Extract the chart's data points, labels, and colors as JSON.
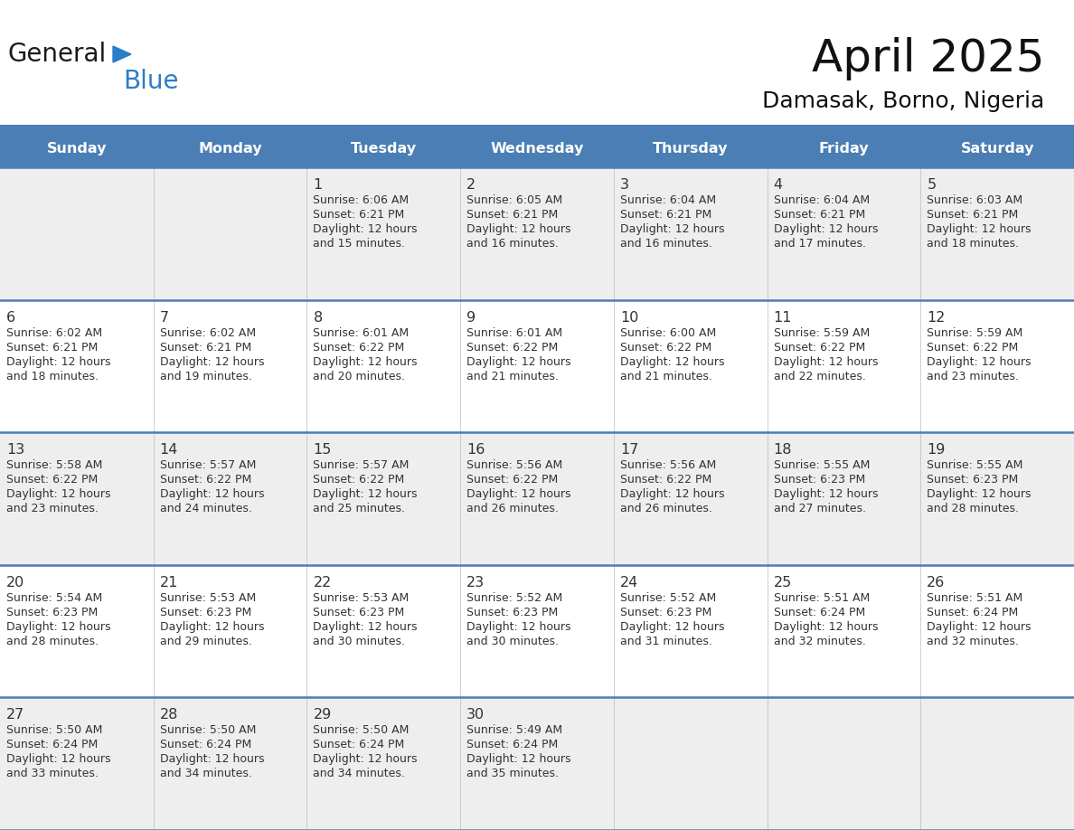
{
  "title": "April 2025",
  "subtitle": "Damasak, Borno, Nigeria",
  "header_color": "#4a7eb5",
  "header_text_color": "#ffffff",
  "border_color": "#4a7eb5",
  "text_color": "#333333",
  "days_of_week": [
    "Sunday",
    "Monday",
    "Tuesday",
    "Wednesday",
    "Thursday",
    "Friday",
    "Saturday"
  ],
  "row_bg_colors": [
    "#eeeeee",
    "#ffffff"
  ],
  "calendar_data": [
    [
      {
        "day": "",
        "sunrise": "",
        "sunset": "",
        "dl1": "",
        "dl2": ""
      },
      {
        "day": "",
        "sunrise": "",
        "sunset": "",
        "dl1": "",
        "dl2": ""
      },
      {
        "day": "1",
        "sunrise": "Sunrise: 6:06 AM",
        "sunset": "Sunset: 6:21 PM",
        "dl1": "Daylight: 12 hours",
        "dl2": "and 15 minutes."
      },
      {
        "day": "2",
        "sunrise": "Sunrise: 6:05 AM",
        "sunset": "Sunset: 6:21 PM",
        "dl1": "Daylight: 12 hours",
        "dl2": "and 16 minutes."
      },
      {
        "day": "3",
        "sunrise": "Sunrise: 6:04 AM",
        "sunset": "Sunset: 6:21 PM",
        "dl1": "Daylight: 12 hours",
        "dl2": "and 16 minutes."
      },
      {
        "day": "4",
        "sunrise": "Sunrise: 6:04 AM",
        "sunset": "Sunset: 6:21 PM",
        "dl1": "Daylight: 12 hours",
        "dl2": "and 17 minutes."
      },
      {
        "day": "5",
        "sunrise": "Sunrise: 6:03 AM",
        "sunset": "Sunset: 6:21 PM",
        "dl1": "Daylight: 12 hours",
        "dl2": "and 18 minutes."
      }
    ],
    [
      {
        "day": "6",
        "sunrise": "Sunrise: 6:02 AM",
        "sunset": "Sunset: 6:21 PM",
        "dl1": "Daylight: 12 hours",
        "dl2": "and 18 minutes."
      },
      {
        "day": "7",
        "sunrise": "Sunrise: 6:02 AM",
        "sunset": "Sunset: 6:21 PM",
        "dl1": "Daylight: 12 hours",
        "dl2": "and 19 minutes."
      },
      {
        "day": "8",
        "sunrise": "Sunrise: 6:01 AM",
        "sunset": "Sunset: 6:22 PM",
        "dl1": "Daylight: 12 hours",
        "dl2": "and 20 minutes."
      },
      {
        "day": "9",
        "sunrise": "Sunrise: 6:01 AM",
        "sunset": "Sunset: 6:22 PM",
        "dl1": "Daylight: 12 hours",
        "dl2": "and 21 minutes."
      },
      {
        "day": "10",
        "sunrise": "Sunrise: 6:00 AM",
        "sunset": "Sunset: 6:22 PM",
        "dl1": "Daylight: 12 hours",
        "dl2": "and 21 minutes."
      },
      {
        "day": "11",
        "sunrise": "Sunrise: 5:59 AM",
        "sunset": "Sunset: 6:22 PM",
        "dl1": "Daylight: 12 hours",
        "dl2": "and 22 minutes."
      },
      {
        "day": "12",
        "sunrise": "Sunrise: 5:59 AM",
        "sunset": "Sunset: 6:22 PM",
        "dl1": "Daylight: 12 hours",
        "dl2": "and 23 minutes."
      }
    ],
    [
      {
        "day": "13",
        "sunrise": "Sunrise: 5:58 AM",
        "sunset": "Sunset: 6:22 PM",
        "dl1": "Daylight: 12 hours",
        "dl2": "and 23 minutes."
      },
      {
        "day": "14",
        "sunrise": "Sunrise: 5:57 AM",
        "sunset": "Sunset: 6:22 PM",
        "dl1": "Daylight: 12 hours",
        "dl2": "and 24 minutes."
      },
      {
        "day": "15",
        "sunrise": "Sunrise: 5:57 AM",
        "sunset": "Sunset: 6:22 PM",
        "dl1": "Daylight: 12 hours",
        "dl2": "and 25 minutes."
      },
      {
        "day": "16",
        "sunrise": "Sunrise: 5:56 AM",
        "sunset": "Sunset: 6:22 PM",
        "dl1": "Daylight: 12 hours",
        "dl2": "and 26 minutes."
      },
      {
        "day": "17",
        "sunrise": "Sunrise: 5:56 AM",
        "sunset": "Sunset: 6:22 PM",
        "dl1": "Daylight: 12 hours",
        "dl2": "and 26 minutes."
      },
      {
        "day": "18",
        "sunrise": "Sunrise: 5:55 AM",
        "sunset": "Sunset: 6:23 PM",
        "dl1": "Daylight: 12 hours",
        "dl2": "and 27 minutes."
      },
      {
        "day": "19",
        "sunrise": "Sunrise: 5:55 AM",
        "sunset": "Sunset: 6:23 PM",
        "dl1": "Daylight: 12 hours",
        "dl2": "and 28 minutes."
      }
    ],
    [
      {
        "day": "20",
        "sunrise": "Sunrise: 5:54 AM",
        "sunset": "Sunset: 6:23 PM",
        "dl1": "Daylight: 12 hours",
        "dl2": "and 28 minutes."
      },
      {
        "day": "21",
        "sunrise": "Sunrise: 5:53 AM",
        "sunset": "Sunset: 6:23 PM",
        "dl1": "Daylight: 12 hours",
        "dl2": "and 29 minutes."
      },
      {
        "day": "22",
        "sunrise": "Sunrise: 5:53 AM",
        "sunset": "Sunset: 6:23 PM",
        "dl1": "Daylight: 12 hours",
        "dl2": "and 30 minutes."
      },
      {
        "day": "23",
        "sunrise": "Sunrise: 5:52 AM",
        "sunset": "Sunset: 6:23 PM",
        "dl1": "Daylight: 12 hours",
        "dl2": "and 30 minutes."
      },
      {
        "day": "24",
        "sunrise": "Sunrise: 5:52 AM",
        "sunset": "Sunset: 6:23 PM",
        "dl1": "Daylight: 12 hours",
        "dl2": "and 31 minutes."
      },
      {
        "day": "25",
        "sunrise": "Sunrise: 5:51 AM",
        "sunset": "Sunset: 6:24 PM",
        "dl1": "Daylight: 12 hours",
        "dl2": "and 32 minutes."
      },
      {
        "day": "26",
        "sunrise": "Sunrise: 5:51 AM",
        "sunset": "Sunset: 6:24 PM",
        "dl1": "Daylight: 12 hours",
        "dl2": "and 32 minutes."
      }
    ],
    [
      {
        "day": "27",
        "sunrise": "Sunrise: 5:50 AM",
        "sunset": "Sunset: 6:24 PM",
        "dl1": "Daylight: 12 hours",
        "dl2": "and 33 minutes."
      },
      {
        "day": "28",
        "sunrise": "Sunrise: 5:50 AM",
        "sunset": "Sunset: 6:24 PM",
        "dl1": "Daylight: 12 hours",
        "dl2": "and 34 minutes."
      },
      {
        "day": "29",
        "sunrise": "Sunrise: 5:50 AM",
        "sunset": "Sunset: 6:24 PM",
        "dl1": "Daylight: 12 hours",
        "dl2": "and 34 minutes."
      },
      {
        "day": "30",
        "sunrise": "Sunrise: 5:49 AM",
        "sunset": "Sunset: 6:24 PM",
        "dl1": "Daylight: 12 hours",
        "dl2": "and 35 minutes."
      },
      {
        "day": "",
        "sunrise": "",
        "sunset": "",
        "dl1": "",
        "dl2": ""
      },
      {
        "day": "",
        "sunrise": "",
        "sunset": "",
        "dl1": "",
        "dl2": ""
      },
      {
        "day": "",
        "sunrise": "",
        "sunset": "",
        "dl1": "",
        "dl2": ""
      }
    ]
  ],
  "logo_text1": "General",
  "logo_text2": "Blue",
  "logo_color1": "#1a1a1a",
  "logo_color2": "#2a7dc9"
}
